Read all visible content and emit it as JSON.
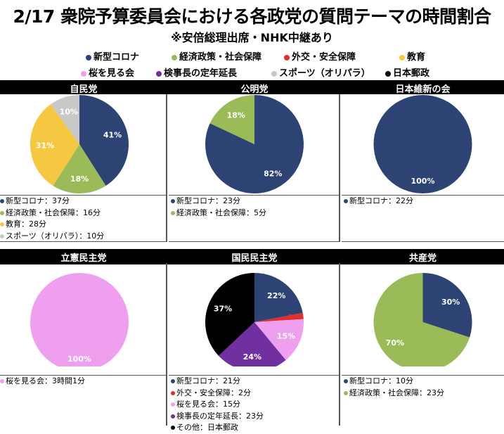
{
  "title": "2/17 衆院予算委員会における各政党の質問テーマの時間割合",
  "subtitle": "※安倍総理出席・NHK中継あり",
  "legend": [
    {
      "label": "新型コロナ",
      "color": "#2c4373"
    },
    {
      "label": "経済政策・社会保障",
      "color": "#9bbb59"
    },
    {
      "label": "外交・安全保障",
      "color": "#e0302d"
    },
    {
      "label": "教育",
      "color": "#f6c842"
    },
    {
      "label": "桜を見る会",
      "color": "#eea0ee"
    },
    {
      "label": "検事長の定年延長",
      "color": "#7030a0"
    },
    {
      "label": "スポーツ（オリパラ）",
      "color": "#c8c8c8"
    },
    {
      "label": "日本郵政",
      "color": "#000000"
    }
  ],
  "chart_data": [
    {
      "type": "pie",
      "title": "自民党",
      "slices": [
        {
          "cat": 0,
          "value": 41
        },
        {
          "cat": 1,
          "value": 18
        },
        {
          "cat": 3,
          "value": 31
        },
        {
          "cat": 6,
          "value": 10
        }
      ],
      "items": [
        "新型コロナ：37分",
        "経済政策・社会保障：16分",
        "教育：28分",
        "スポーツ（オリパラ）：10分"
      ],
      "item_cats": [
        0,
        1,
        3,
        6
      ]
    },
    {
      "type": "pie",
      "title": "公明党",
      "slices": [
        {
          "cat": 0,
          "value": 82
        },
        {
          "cat": 1,
          "value": 18
        }
      ],
      "items": [
        "新型コロナ：23分",
        "経済政策・社会保障：5分"
      ],
      "item_cats": [
        0,
        1
      ]
    },
    {
      "type": "pie",
      "title": "日本維新の会",
      "slices": [
        {
          "cat": 0,
          "value": 100
        }
      ],
      "items": [
        "新型コロナ：22分"
      ],
      "item_cats": [
        0
      ]
    },
    {
      "type": "pie",
      "title": "立憲民主党",
      "slices": [
        {
          "cat": 4,
          "value": 100
        }
      ],
      "items": [
        "桜を見る会：3時間1分"
      ],
      "item_cats": [
        4
      ]
    },
    {
      "type": "pie",
      "title": "国民民主党",
      "slices": [
        {
          "cat": 0,
          "value": 22
        },
        {
          "cat": 2,
          "value": 2
        },
        {
          "cat": 4,
          "value": 15
        },
        {
          "cat": 5,
          "value": 24
        },
        {
          "cat": 7,
          "value": 37
        }
      ],
      "items": [
        "新型コロナ：21分",
        "外交・安全保障：2分",
        "桜を見る会：15分",
        "検事長の定年延長：23分",
        "その他：日本郵政"
      ],
      "item_cats": [
        0,
        2,
        4,
        5,
        7
      ]
    },
    {
      "type": "pie",
      "title": "共産党",
      "slices": [
        {
          "cat": 0,
          "value": 30
        },
        {
          "cat": 1,
          "value": 70
        }
      ],
      "items": [
        "新型コロナ：10分",
        "経済政策・社会保障：23分"
      ],
      "item_cats": [
        0,
        1
      ]
    }
  ]
}
